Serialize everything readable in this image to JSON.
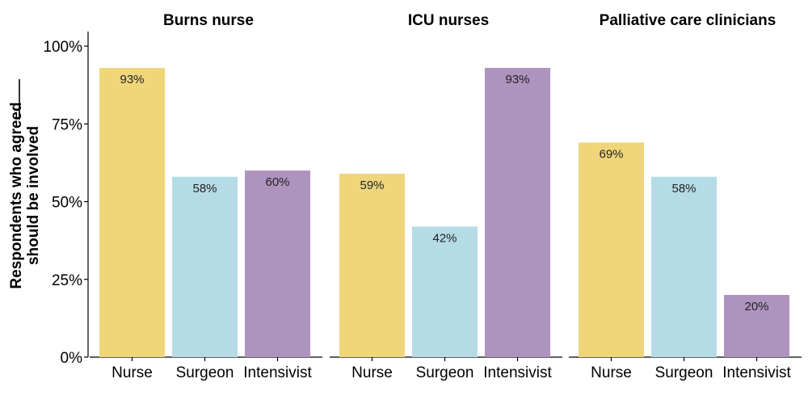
{
  "chart_data": {
    "type": "bar",
    "ylabel_line1": "Respondents who agreed",
    "ylabel_line2": "should be involved",
    "ylim": [
      0,
      100
    ],
    "yticks": [
      0,
      25,
      50,
      75,
      100
    ],
    "ytick_labels": [
      "0%",
      "25%",
      "50%",
      "75%",
      "100%"
    ],
    "grid": false,
    "legend": "none",
    "categories": [
      "Nurse",
      "Surgeon",
      "Intensivist"
    ],
    "category_colors": [
      "#EFD67A",
      "#B5DBE6",
      "#AE93BE"
    ],
    "panels": [
      {
        "title": "Burns nurse",
        "values": [
          93,
          58,
          60
        ],
        "labels": [
          "93%",
          "58%",
          "60%"
        ]
      },
      {
        "title": "ICU nurses",
        "values": [
          59,
          42,
          93
        ],
        "labels": [
          "59%",
          "42%",
          "93%"
        ]
      },
      {
        "title": "Palliative care clinicians",
        "values": [
          69,
          58,
          20
        ],
        "labels": [
          "69%",
          "58%",
          "20%"
        ]
      }
    ]
  }
}
